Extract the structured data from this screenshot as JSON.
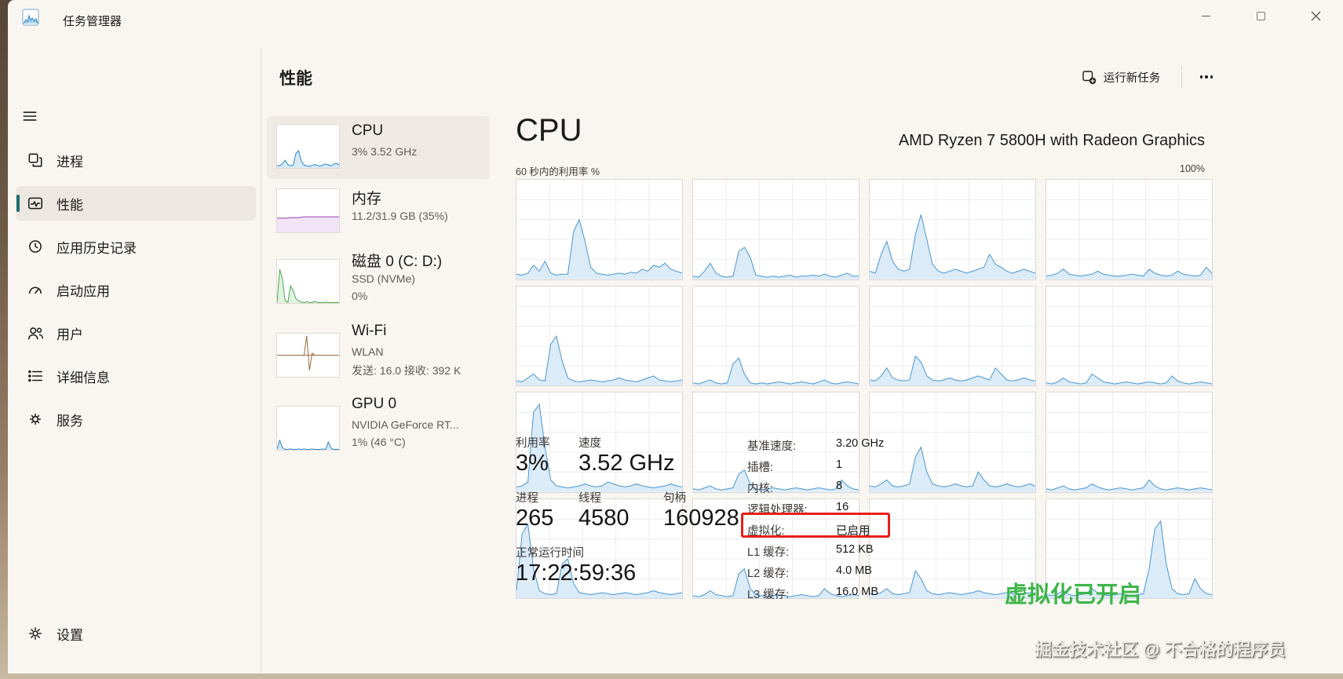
{
  "window": {
    "title": "任务管理器"
  },
  "sidebar": {
    "items": [
      {
        "label": "进程"
      },
      {
        "label": "性能",
        "selected": true
      },
      {
        "label": "应用历史记录"
      },
      {
        "label": "启动应用"
      },
      {
        "label": "用户"
      },
      {
        "label": "详细信息"
      },
      {
        "label": "服务"
      }
    ],
    "settings": {
      "label": "设置"
    }
  },
  "header": {
    "page_title": "性能",
    "run_new_task_label": "运行新任务"
  },
  "perf_list": [
    {
      "name": "CPU",
      "sub1": "3% 3.52 GHz",
      "selected": true,
      "spark": {
        "stroke": "#2a86c8",
        "fill": "#d9e9f7",
        "values": [
          6,
          5,
          10,
          18,
          8,
          5,
          7,
          34,
          40,
          16,
          7,
          5,
          4,
          6,
          8,
          6,
          4,
          7,
          9,
          7,
          5,
          9,
          11,
          7
        ]
      }
    },
    {
      "name": "内存",
      "sub1": "11.2/31.9 GB (35%)",
      "spark": {
        "stroke": "#9541b5",
        "fill": "#f0e4f6",
        "values": [
          33,
          33,
          33,
          33,
          33,
          34,
          34,
          34,
          34,
          35,
          36,
          36,
          36,
          36,
          36,
          36,
          36,
          36,
          36,
          36,
          36,
          36,
          36,
          36
        ]
      }
    },
    {
      "name": "磁盘 0 (C: D:)",
      "sub1": "SSD (NVMe)",
      "sub2": "0%",
      "spark": {
        "stroke": "#4ca64c",
        "fill": "#e2f2e2",
        "values": [
          2,
          78,
          55,
          6,
          2,
          40,
          28,
          10,
          5,
          2,
          1,
          3,
          1,
          1,
          4,
          1,
          1,
          1,
          2,
          1,
          1,
          1,
          1,
          1
        ]
      }
    },
    {
      "name": "Wi-Fi",
      "sub1": "WLAN",
      "sub2": "发送: 16.0 接收: 392 K",
      "spark": {
        "stroke": "#9a6a3a",
        "midline": true,
        "values": [
          50,
          50,
          50,
          50,
          50,
          50,
          50,
          50,
          50,
          50,
          50,
          95,
          15,
          55,
          50,
          50,
          50,
          50,
          50,
          50,
          50,
          50,
          50,
          50
        ]
      }
    },
    {
      "name": "GPU 0",
      "sub1": "NVIDIA GeForce RT...",
      "sub2": "1% (46 °C)",
      "spark": {
        "stroke": "#2a86c8",
        "fill": "#d9e9f7",
        "values": [
          2,
          22,
          5,
          1,
          1,
          2,
          1,
          1,
          2,
          1,
          2,
          1,
          1,
          2,
          1,
          1,
          1,
          2,
          1,
          18,
          4,
          1,
          1,
          1
        ]
      }
    }
  ],
  "cpu_panel": {
    "title": "CPU",
    "processor_name": "AMD Ryzen 7 5800H with Radeon Graphics",
    "chart_caption": "60 秒内的利用率 %",
    "chart_scale_max": "100%",
    "stats": {
      "utilization": {
        "label": "利用率",
        "value": "3%"
      },
      "speed": {
        "label": "速度",
        "value": "3.52 GHz"
      },
      "processes": {
        "label": "进程",
        "value": "265"
      },
      "threads": {
        "label": "线程",
        "value": "4580"
      },
      "handles": {
        "label": "句柄",
        "value": "160928"
      },
      "uptime": {
        "label": "正常运行时间",
        "value": "17:22:59:36"
      }
    },
    "right_stats": [
      {
        "label": "基准速度:",
        "value": "3.20 GHz"
      },
      {
        "label": "插槽:",
        "value": "1"
      },
      {
        "label": "内核:",
        "value": "8"
      },
      {
        "label": "逻辑处理器:",
        "value": "16"
      },
      {
        "label": "虚拟化:",
        "value": "已启用",
        "highlighted": true
      },
      {
        "label": "L1 缓存:",
        "value": "512 KB"
      },
      {
        "label": "L2 缓存:",
        "value": "4.0 MB"
      },
      {
        "label": "L3 缓存:",
        "value": "16.0 MB"
      }
    ],
    "annotation": {
      "text": "虚拟化已开启",
      "color": "#3db549"
    },
    "watermark": "掘金技术社区 @ 不合格的程序员",
    "highlight_box_color": "#e81f17"
  },
  "icons": [
    "app-icon",
    "hamburger-icon",
    "processes-icon",
    "performance-icon",
    "history-icon",
    "startup-icon",
    "users-icon",
    "details-icon",
    "services-icon",
    "settings-icon",
    "new-task-icon",
    "more-options-icon",
    "minimize-icon",
    "maximize-icon",
    "close-icon"
  ],
  "colors": {
    "accent": "#1a6f6d",
    "cpu_chart_stroke": "#4a96d2",
    "cpu_chart_fill": "#dcebf8",
    "memory": "#9541b5",
    "disk": "#4ca64c",
    "wifi": "#9a6a3a",
    "highlight_red": "#e81f17",
    "annotation_green": "#3db549"
  },
  "chart_data": {
    "type": "area",
    "title": "60 秒内的利用率 %",
    "ylabel": "利用率 %",
    "ylim": [
      0,
      100
    ],
    "x_range_seconds": 60,
    "grid": true,
    "stroke": "#4a96d2",
    "fill": "#dcebf8",
    "series": [
      {
        "values": [
          5,
          4,
          6,
          14,
          8,
          18,
          6,
          4,
          5,
          5,
          48,
          60,
          38,
          12,
          6,
          5,
          4,
          5,
          6,
          5,
          7,
          6,
          10,
          8,
          14,
          12,
          16,
          10,
          8,
          6
        ]
      },
      {
        "values": [
          3,
          2,
          8,
          16,
          6,
          3,
          2,
          3,
          28,
          32,
          22,
          4,
          3,
          2,
          3,
          2,
          3,
          4,
          2,
          3,
          3,
          4,
          3,
          5,
          3,
          2,
          4,
          6,
          3,
          3
        ]
      },
      {
        "values": [
          8,
          6,
          25,
          38,
          18,
          10,
          8,
          10,
          45,
          65,
          40,
          15,
          8,
          6,
          8,
          10,
          8,
          6,
          8,
          10,
          12,
          25,
          15,
          12,
          8,
          6,
          8,
          10,
          8,
          6
        ]
      },
      {
        "values": [
          3,
          4,
          6,
          10,
          5,
          4,
          3,
          4,
          5,
          8,
          5,
          4,
          3,
          3,
          4,
          5,
          4,
          3,
          10,
          6,
          4,
          3,
          4,
          8,
          5,
          4,
          3,
          4,
          12,
          6
        ]
      },
      {
        "values": [
          5,
          4,
          8,
          12,
          6,
          5,
          42,
          50,
          25,
          8,
          5,
          4,
          5,
          6,
          5,
          4,
          5,
          6,
          8,
          6,
          5,
          4,
          6,
          8,
          10,
          6,
          5,
          4,
          5,
          6
        ]
      },
      {
        "values": [
          3,
          2,
          4,
          6,
          3,
          2,
          3,
          22,
          28,
          12,
          3,
          2,
          3,
          2,
          3,
          4,
          3,
          2,
          3,
          4,
          3,
          2,
          4,
          6,
          3,
          2,
          3,
          4,
          3,
          2
        ]
      },
      {
        "values": [
          6,
          5,
          10,
          18,
          8,
          6,
          5,
          6,
          30,
          24,
          10,
          6,
          5,
          6,
          8,
          6,
          5,
          6,
          8,
          10,
          8,
          6,
          18,
          12,
          6,
          5,
          6,
          8,
          6,
          5
        ]
      },
      {
        "values": [
          3,
          2,
          4,
          8,
          4,
          3,
          2,
          3,
          12,
          8,
          4,
          3,
          2,
          3,
          4,
          3,
          2,
          3,
          4,
          3,
          2,
          3,
          10,
          5,
          3,
          2,
          3,
          4,
          3,
          2
        ]
      },
      {
        "values": [
          5,
          6,
          10,
          80,
          88,
          45,
          12,
          6,
          5,
          4,
          5,
          6,
          8,
          6,
          5,
          6,
          10,
          8,
          6,
          5,
          6,
          8,
          6,
          5,
          4,
          5,
          6,
          8,
          6,
          5
        ]
      },
      {
        "values": [
          3,
          2,
          4,
          6,
          3,
          2,
          3,
          4,
          18,
          22,
          8,
          3,
          2,
          3,
          4,
          3,
          2,
          3,
          4,
          3,
          2,
          3,
          4,
          3,
          2,
          3,
          12,
          6,
          3,
          2
        ]
      },
      {
        "values": [
          6,
          5,
          8,
          12,
          6,
          5,
          6,
          8,
          35,
          45,
          20,
          8,
          6,
          5,
          6,
          8,
          6,
          5,
          6,
          20,
          12,
          6,
          5,
          6,
          8,
          6,
          5,
          6,
          8,
          6
        ]
      },
      {
        "values": [
          3,
          2,
          4,
          6,
          3,
          2,
          3,
          4,
          8,
          5,
          3,
          2,
          3,
          4,
          3,
          2,
          3,
          4,
          12,
          6,
          3,
          2,
          3,
          4,
          3,
          2,
          3,
          4,
          3,
          2
        ]
      },
      {
        "values": [
          8,
          65,
          75,
          30,
          8,
          5,
          4,
          5,
          35,
          40,
          15,
          6,
          5,
          4,
          5,
          6,
          5,
          4,
          5,
          6,
          5,
          4,
          5,
          6,
          8,
          6,
          5,
          4,
          5,
          6
        ]
      },
      {
        "values": [
          3,
          2,
          4,
          8,
          4,
          3,
          2,
          3,
          25,
          30,
          10,
          4,
          3,
          2,
          3,
          4,
          3,
          2,
          3,
          4,
          3,
          2,
          3,
          10,
          5,
          3,
          2,
          3,
          4,
          3
        ]
      },
      {
        "values": [
          5,
          4,
          6,
          10,
          5,
          4,
          5,
          6,
          28,
          20,
          8,
          5,
          4,
          5,
          6,
          5,
          4,
          5,
          6,
          8,
          6,
          5,
          4,
          5,
          6,
          5,
          4,
          5,
          6,
          5
        ]
      },
      {
        "values": [
          4,
          3,
          5,
          8,
          4,
          3,
          4,
          5,
          10,
          6,
          4,
          3,
          4,
          5,
          4,
          3,
          4,
          5,
          30,
          70,
          78,
          35,
          10,
          5,
          4,
          5,
          20,
          10,
          5,
          4
        ]
      }
    ]
  }
}
